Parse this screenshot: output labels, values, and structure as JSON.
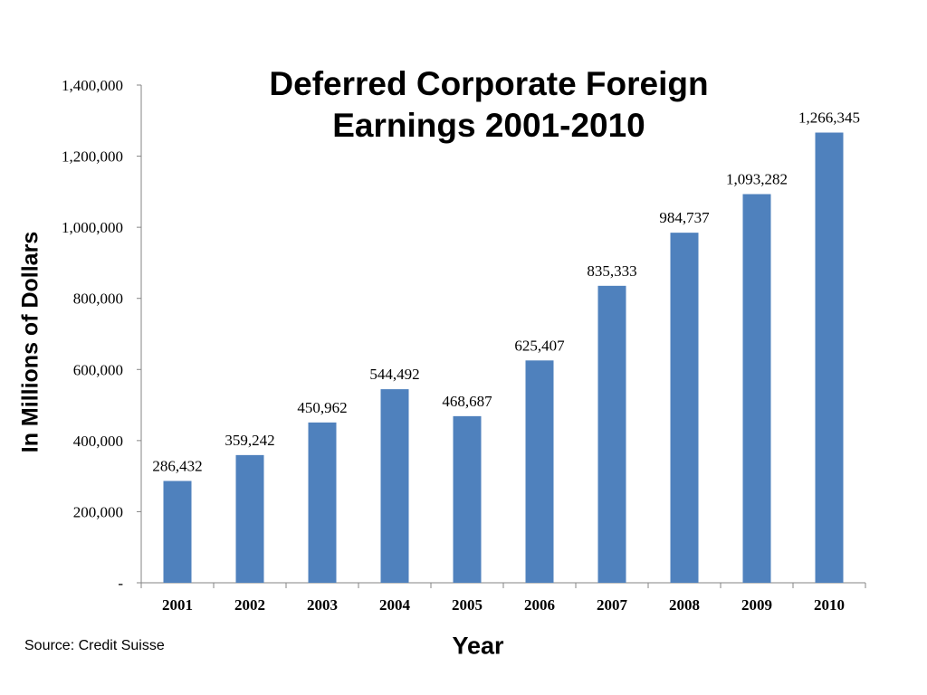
{
  "chart_data": {
    "type": "bar",
    "title": "Deferred Corporate Foreign Earnings 2001-2010",
    "xlabel": "Year",
    "ylabel": "In Millions of Dollars",
    "categories": [
      "2001",
      "2002",
      "2003",
      "2004",
      "2005",
      "2006",
      "2007",
      "2008",
      "2009",
      "2010"
    ],
    "values": [
      286432,
      359242,
      450962,
      544492,
      468687,
      625407,
      835333,
      984737,
      1093282,
      1266345
    ],
    "data_labels": [
      "286,432",
      "359,242",
      "450,962",
      "544,492",
      "468,687",
      "625,407",
      "835,333",
      "984,737",
      "1,093,282",
      "1,266,345"
    ],
    "ylim": [
      0,
      1400000
    ],
    "yticks": [
      0,
      200000,
      400000,
      600000,
      800000,
      1000000,
      1200000,
      1400000
    ],
    "ytick_labels": [
      "-",
      "200,000",
      "400,000",
      "600,000",
      "800,000",
      "1,000,000",
      "1,200,000",
      "1,400,000"
    ],
    "grid": false,
    "bar_color": "#4f81bd",
    "source": "Source: Credit Suisse"
  }
}
